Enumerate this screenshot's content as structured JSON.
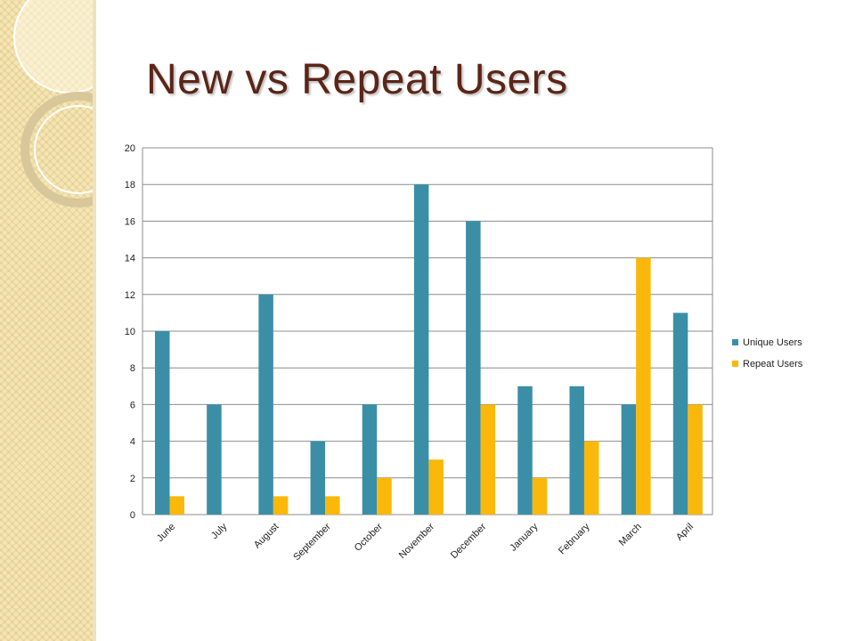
{
  "slide": {
    "title": "New vs Repeat Users"
  },
  "colors": {
    "unique": "#3a8fa6",
    "repeat": "#f9b80a",
    "title": "#5b2518",
    "grid": "#8c8c8c",
    "panel": "#f6e6b4"
  },
  "chart_data": {
    "type": "bar",
    "title": "",
    "xlabel": "",
    "ylabel": "",
    "ylim": [
      0,
      20
    ],
    "yticks": [
      0,
      2,
      4,
      6,
      8,
      10,
      12,
      14,
      16,
      18,
      20
    ],
    "grid": true,
    "legend_position": "right",
    "categories": [
      "June",
      "July",
      "August",
      "September",
      "October",
      "November",
      "December",
      "January",
      "February",
      "March",
      "April"
    ],
    "series": [
      {
        "name": "Unique Users",
        "color": "#3a8fa6",
        "values": [
          10,
          6,
          12,
          4,
          6,
          18,
          16,
          7,
          7,
          6,
          11
        ]
      },
      {
        "name": "Repeat Users",
        "color": "#f9b80a",
        "values": [
          1,
          0,
          1,
          1,
          2,
          3,
          6,
          2,
          4,
          14,
          6
        ]
      }
    ]
  }
}
